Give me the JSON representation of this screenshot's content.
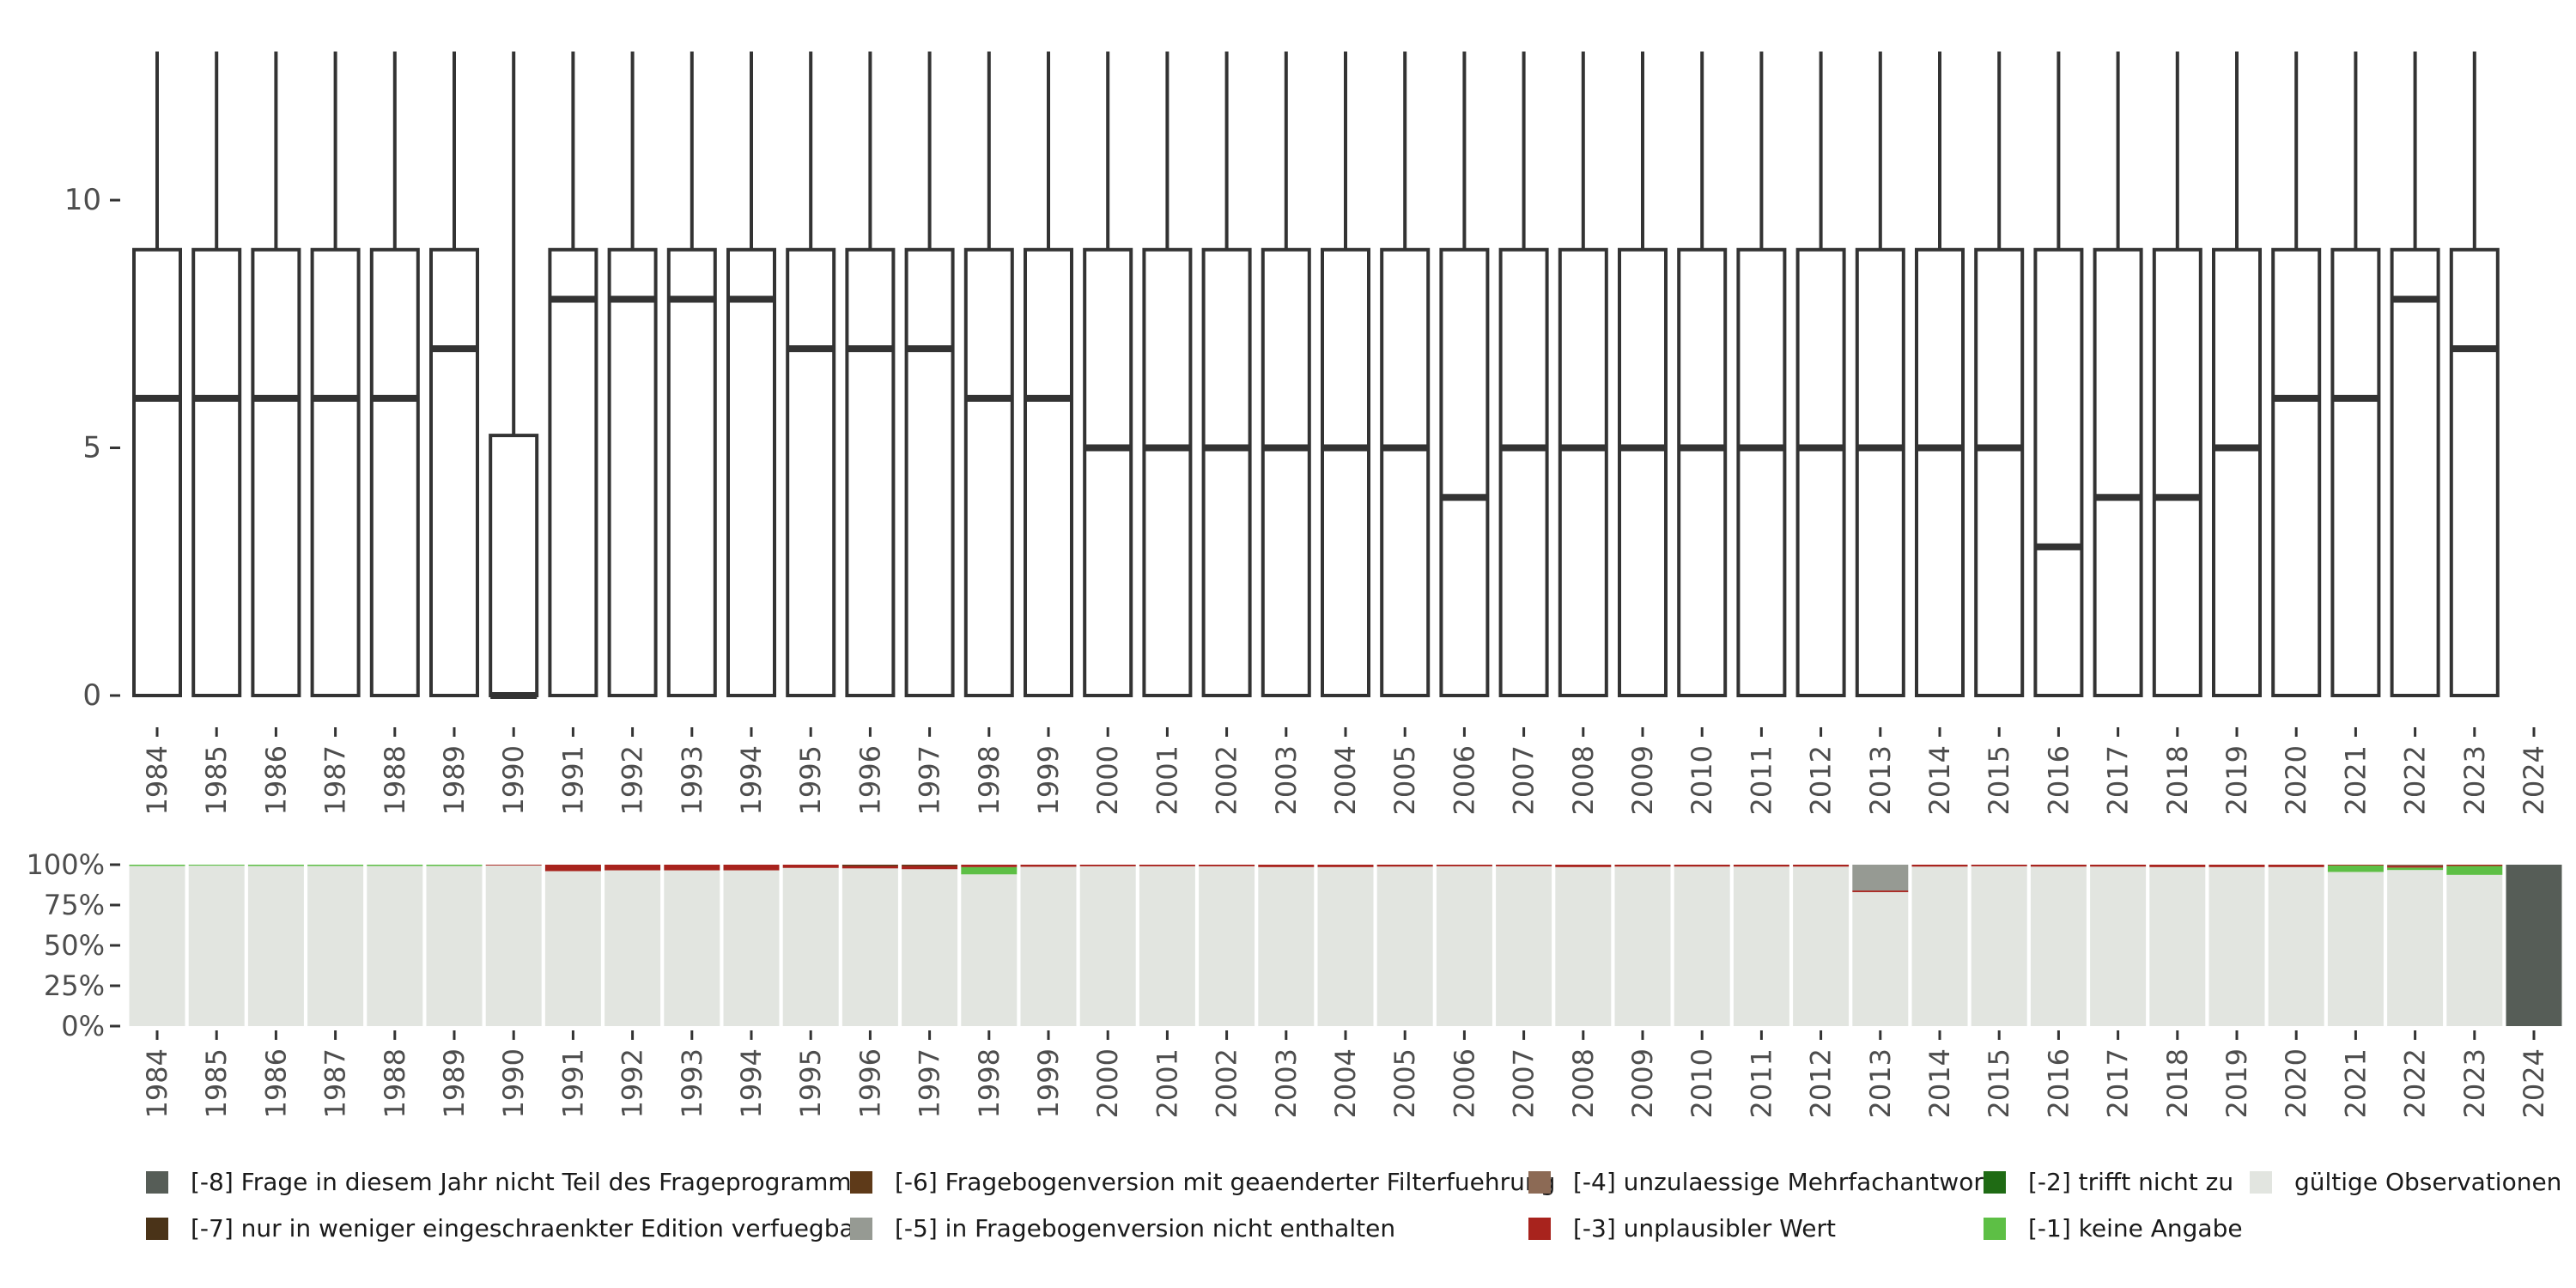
{
  "chart_data": [
    {
      "type": "boxplot",
      "title": "",
      "xlabel": "",
      "ylabel": "",
      "ylim": [
        0,
        13
      ],
      "yticks": [
        0,
        5,
        10
      ],
      "categories": [
        "1984",
        "1985",
        "1986",
        "1987",
        "1988",
        "1989",
        "1990",
        "1991",
        "1992",
        "1993",
        "1994",
        "1995",
        "1996",
        "1997",
        "1998",
        "1999",
        "2000",
        "2001",
        "2002",
        "2003",
        "2004",
        "2005",
        "2006",
        "2007",
        "2008",
        "2009",
        "2010",
        "2011",
        "2012",
        "2013",
        "2014",
        "2015",
        "2016",
        "2017",
        "2018",
        "2019",
        "2020",
        "2021",
        "2022",
        "2023",
        "2024"
      ],
      "boxes": [
        {
          "year": "1984",
          "lower": 0,
          "q1": 0,
          "median": 6,
          "q3": 9,
          "upper": 13
        },
        {
          "year": "1985",
          "lower": 0,
          "q1": 0,
          "median": 6,
          "q3": 9,
          "upper": 13
        },
        {
          "year": "1986",
          "lower": 0,
          "q1": 0,
          "median": 6,
          "q3": 9,
          "upper": 13
        },
        {
          "year": "1987",
          "lower": 0,
          "q1": 0,
          "median": 6,
          "q3": 9,
          "upper": 13
        },
        {
          "year": "1988",
          "lower": 0,
          "q1": 0,
          "median": 6,
          "q3": 9,
          "upper": 13
        },
        {
          "year": "1989",
          "lower": 0,
          "q1": 0,
          "median": 7,
          "q3": 9,
          "upper": 13
        },
        {
          "year": "1990",
          "lower": 0,
          "q1": 0,
          "median": 0,
          "q3": 5.25,
          "upper": 13
        },
        {
          "year": "1991",
          "lower": 0,
          "q1": 0,
          "median": 8,
          "q3": 9,
          "upper": 13
        },
        {
          "year": "1992",
          "lower": 0,
          "q1": 0,
          "median": 8,
          "q3": 9,
          "upper": 13
        },
        {
          "year": "1993",
          "lower": 0,
          "q1": 0,
          "median": 8,
          "q3": 9,
          "upper": 13
        },
        {
          "year": "1994",
          "lower": 0,
          "q1": 0,
          "median": 8,
          "q3": 9,
          "upper": 13
        },
        {
          "year": "1995",
          "lower": 0,
          "q1": 0,
          "median": 7,
          "q3": 9,
          "upper": 13
        },
        {
          "year": "1996",
          "lower": 0,
          "q1": 0,
          "median": 7,
          "q3": 9,
          "upper": 13
        },
        {
          "year": "1997",
          "lower": 0,
          "q1": 0,
          "median": 7,
          "q3": 9,
          "upper": 13
        },
        {
          "year": "1998",
          "lower": 0,
          "q1": 0,
          "median": 6,
          "q3": 9,
          "upper": 13
        },
        {
          "year": "1999",
          "lower": 0,
          "q1": 0,
          "median": 6,
          "q3": 9,
          "upper": 13
        },
        {
          "year": "2000",
          "lower": 0,
          "q1": 0,
          "median": 5,
          "q3": 9,
          "upper": 13
        },
        {
          "year": "2001",
          "lower": 0,
          "q1": 0,
          "median": 5,
          "q3": 9,
          "upper": 13
        },
        {
          "year": "2002",
          "lower": 0,
          "q1": 0,
          "median": 5,
          "q3": 9,
          "upper": 13
        },
        {
          "year": "2003",
          "lower": 0,
          "q1": 0,
          "median": 5,
          "q3": 9,
          "upper": 13
        },
        {
          "year": "2004",
          "lower": 0,
          "q1": 0,
          "median": 5,
          "q3": 9,
          "upper": 13
        },
        {
          "year": "2005",
          "lower": 0,
          "q1": 0,
          "median": 5,
          "q3": 9,
          "upper": 13
        },
        {
          "year": "2006",
          "lower": 0,
          "q1": 0,
          "median": 4,
          "q3": 9,
          "upper": 13
        },
        {
          "year": "2007",
          "lower": 0,
          "q1": 0,
          "median": 5,
          "q3": 9,
          "upper": 13
        },
        {
          "year": "2008",
          "lower": 0,
          "q1": 0,
          "median": 5,
          "q3": 9,
          "upper": 13
        },
        {
          "year": "2009",
          "lower": 0,
          "q1": 0,
          "median": 5,
          "q3": 9,
          "upper": 13
        },
        {
          "year": "2010",
          "lower": 0,
          "q1": 0,
          "median": 5,
          "q3": 9,
          "upper": 13
        },
        {
          "year": "2011",
          "lower": 0,
          "q1": 0,
          "median": 5,
          "q3": 9,
          "upper": 13
        },
        {
          "year": "2012",
          "lower": 0,
          "q1": 0,
          "median": 5,
          "q3": 9,
          "upper": 13
        },
        {
          "year": "2013",
          "lower": 0,
          "q1": 0,
          "median": 5,
          "q3": 9,
          "upper": 13
        },
        {
          "year": "2014",
          "lower": 0,
          "q1": 0,
          "median": 5,
          "q3": 9,
          "upper": 13
        },
        {
          "year": "2015",
          "lower": 0,
          "q1": 0,
          "median": 5,
          "q3": 9,
          "upper": 13
        },
        {
          "year": "2016",
          "lower": 0,
          "q1": 0,
          "median": 3,
          "q3": 9,
          "upper": 13
        },
        {
          "year": "2017",
          "lower": 0,
          "q1": 0,
          "median": 4,
          "q3": 9,
          "upper": 13
        },
        {
          "year": "2018",
          "lower": 0,
          "q1": 0,
          "median": 4,
          "q3": 9,
          "upper": 13
        },
        {
          "year": "2019",
          "lower": 0,
          "q1": 0,
          "median": 5,
          "q3": 9,
          "upper": 13
        },
        {
          "year": "2020",
          "lower": 0,
          "q1": 0,
          "median": 6,
          "q3": 9,
          "upper": 13
        },
        {
          "year": "2021",
          "lower": 0,
          "q1": 0,
          "median": 6,
          "q3": 9,
          "upper": 13
        },
        {
          "year": "2022",
          "lower": 0,
          "q1": 0,
          "median": 8,
          "q3": 9,
          "upper": 13
        },
        {
          "year": "2023",
          "lower": 0,
          "q1": 0,
          "median": 7,
          "q3": 9,
          "upper": 13
        }
      ]
    },
    {
      "type": "bar",
      "stacked": true,
      "title": "",
      "xlabel": "",
      "ylabel": "",
      "ylim": [
        0,
        100
      ],
      "yticks": [
        "0%",
        "25%",
        "50%",
        "75%",
        "100%"
      ],
      "categories": [
        "1984",
        "1985",
        "1986",
        "1987",
        "1988",
        "1989",
        "1990",
        "1991",
        "1992",
        "1993",
        "1994",
        "1995",
        "1996",
        "1997",
        "1998",
        "1999",
        "2000",
        "2001",
        "2002",
        "2003",
        "2004",
        "2005",
        "2006",
        "2007",
        "2008",
        "2009",
        "2010",
        "2011",
        "2012",
        "2013",
        "2014",
        "2015",
        "2016",
        "2017",
        "2018",
        "2019",
        "2020",
        "2021",
        "2022",
        "2023",
        "2024"
      ],
      "series": [
        {
          "name": "[-8] Frage in diesem Jahr nicht Teil des Frageprogramms",
          "color": "#565d57",
          "values": [
            0,
            0,
            0,
            0,
            0,
            0,
            0,
            0,
            0,
            0,
            0,
            0,
            0,
            0,
            0,
            0,
            0,
            0,
            0,
            0,
            0,
            0,
            0,
            0,
            0,
            0,
            0,
            0,
            0,
            0,
            0,
            0,
            0,
            0,
            0,
            0,
            0,
            0,
            0,
            0,
            100
          ]
        },
        {
          "name": "[-7] nur in weniger eingeschraenkter Edition verfuegbar",
          "color": "#4a3318",
          "values": [
            0,
            0,
            0,
            0,
            0,
            0,
            0,
            0,
            0,
            0,
            0,
            0,
            0,
            0,
            0,
            0,
            0,
            0,
            0,
            0,
            0,
            0,
            0,
            0,
            0,
            0,
            0,
            0,
            0,
            0,
            0,
            0,
            0,
            0,
            0,
            0,
            0,
            0,
            0,
            0,
            0
          ]
        },
        {
          "name": "[-6] Fragebogenversion mit geaenderter Filterfuehrung",
          "color": "#5e3a19",
          "values": [
            0,
            0,
            0,
            0,
            0,
            0,
            0,
            0,
            0,
            0,
            0,
            0,
            0.8,
            0.8,
            0,
            0,
            0,
            0,
            0,
            0,
            0,
            0,
            0,
            0,
            0,
            0,
            0,
            0,
            0,
            0,
            0,
            0,
            0,
            0,
            0,
            0,
            0,
            0,
            0,
            0,
            0
          ]
        },
        {
          "name": "[-5] in Fragebogenversion nicht enthalten",
          "color": "#969a93",
          "values": [
            0,
            0,
            0,
            0,
            0,
            0,
            0,
            0,
            0,
            0,
            0,
            0,
            0,
            0,
            0,
            0,
            0,
            0,
            0,
            0,
            0,
            0,
            0,
            0,
            0,
            0,
            0,
            0,
            0,
            16,
            0,
            0,
            0,
            0,
            0,
            0,
            0,
            0,
            0,
            0,
            0
          ]
        },
        {
          "name": "[-4] unzulaessige Mehrfachantwort",
          "color": "#8c6a55",
          "values": [
            0,
            0,
            0,
            0,
            0,
            0,
            0,
            0,
            0,
            0,
            0,
            0,
            0,
            0,
            0,
            0,
            0,
            0,
            0,
            0,
            0,
            0,
            0,
            0,
            0,
            0,
            0,
            0,
            0,
            0,
            0,
            0,
            0,
            0,
            0,
            0,
            0,
            0,
            0.8,
            0,
            0
          ]
        },
        {
          "name": "[-3] unplausibler Wert",
          "color": "#a8231d",
          "values": [
            0,
            0,
            0,
            0,
            0,
            0,
            0.5,
            4,
            3.5,
            3.5,
            3.5,
            2,
            1.5,
            2,
            1.5,
            1.3,
            1,
            1,
            1,
            1.5,
            1.5,
            1.2,
            1,
            1,
            1.5,
            1.2,
            1.2,
            1.2,
            1.2,
            1,
            1.2,
            1,
            1.2,
            1.2,
            1.5,
            1.5,
            1.5,
            0.5,
            1,
            0.8,
            0
          ]
        },
        {
          "name": "[-2] trifft nicht zu",
          "color": "#1f6b14",
          "values": [
            0,
            0,
            0,
            0,
            0,
            0,
            0,
            0,
            0,
            0,
            0,
            0,
            0,
            0,
            0,
            0,
            0,
            0,
            0,
            0,
            0,
            0,
            0,
            0,
            0,
            0,
            0,
            0,
            0,
            0,
            0,
            0,
            0,
            0,
            0,
            0,
            0,
            0,
            0,
            0,
            0
          ]
        },
        {
          "name": "[-1] keine Angabe",
          "color": "#5dbf45",
          "values": [
            0.8,
            0.6,
            0.8,
            0.8,
            0.8,
            0.8,
            0,
            0,
            0,
            0,
            0,
            0,
            0,
            0,
            4.5,
            0,
            0,
            0,
            0,
            0,
            0,
            0,
            0,
            0,
            0,
            0,
            0,
            0,
            0,
            0,
            0,
            0,
            0,
            0,
            0,
            0,
            0,
            4,
            1.5,
            5.5,
            0
          ]
        },
        {
          "name": "gültige Observationen",
          "color": "#e2e5e0",
          "values": [
            99.2,
            99.4,
            99.2,
            99.2,
            99.2,
            99.2,
            99.5,
            96,
            96.5,
            96.5,
            96.5,
            98,
            97.7,
            97.2,
            94,
            98.7,
            99,
            99,
            99,
            98.5,
            98.5,
            98.8,
            99,
            99,
            98.5,
            98.8,
            98.8,
            98.8,
            98.8,
            83,
            98.8,
            99,
            98.8,
            98.8,
            98.5,
            98.5,
            98.5,
            95.5,
            96.7,
            93.7,
            0
          ]
        }
      ],
      "legend_position": "bottom"
    }
  ],
  "legend": {
    "items": [
      {
        "label": "[-8] Frage in diesem Jahr nicht Teil des Frageprogramms",
        "color": "#565d57"
      },
      {
        "label": "[-7] nur in weniger eingeschraenkter Edition verfuegbar",
        "color": "#4a3318"
      },
      {
        "label": "[-6] Fragebogenversion mit geaenderter Filterfuehrung",
        "color": "#5e3a19"
      },
      {
        "label": "[-5] in Fragebogenversion nicht enthalten",
        "color": "#969a93"
      },
      {
        "label": "[-4] unzulaessige Mehrfachantwort",
        "color": "#8c6a55"
      },
      {
        "label": "[-3] unplausibler Wert",
        "color": "#a8231d"
      },
      {
        "label": "[-2] trifft nicht zu",
        "color": "#1f6b14"
      },
      {
        "label": "[-1] keine Angabe",
        "color": "#5dbf45"
      },
      {
        "label": "gültige Observationen",
        "color": "#e2e5e0"
      }
    ]
  }
}
